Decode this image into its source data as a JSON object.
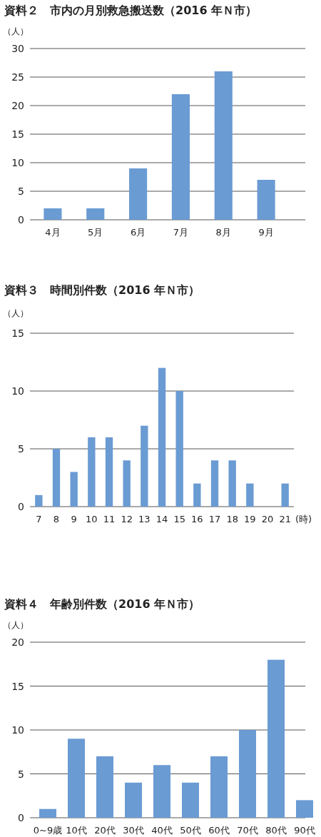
{
  "chart_data": [
    {
      "type": "bar",
      "title": "資料２　市内の月別救急搬送数（2016 年Ｎ市）",
      "ylabel": "（人）",
      "categories": [
        "4月",
        "5月",
        "6月",
        "7月",
        "8月",
        "9月"
      ],
      "series": [
        {
          "color": "#6a9bd3",
          "values": [
            2,
            2,
            9,
            22,
            26,
            7
          ]
        }
      ],
      "ylim": [
        0,
        30
      ],
      "yticks": [
        0,
        5,
        10,
        15,
        20,
        25,
        30
      ],
      "grid": "y"
    },
    {
      "type": "bar",
      "title": "資料３　時間別件数（2016 年Ｎ市）",
      "ylabel": "（人）",
      "xlabel": "(時)",
      "categories": [
        "7",
        "8",
        "9",
        "10",
        "11",
        "12",
        "13",
        "14",
        "15",
        "16",
        "17",
        "18",
        "19",
        "20",
        "21"
      ],
      "series": [
        {
          "color": "#6a9bd3",
          "values": [
            1,
            5,
            3,
            6,
            6,
            4,
            7,
            12,
            10,
            2,
            4,
            4,
            2,
            0,
            2
          ]
        }
      ],
      "ylim": [
        0,
        15
      ],
      "yticks": [
        0,
        5,
        10,
        15
      ],
      "grid": "y"
    },
    {
      "type": "bar",
      "title": "資料４　年齢別件数（2016 年Ｎ市）",
      "ylabel": "（人）",
      "categories": [
        "0~9歳",
        "10代",
        "20代",
        "30代",
        "40代",
        "50代",
        "60代",
        "70代",
        "80代",
        "90代"
      ],
      "series": [
        {
          "color": "#6a9bd3",
          "values": [
            1,
            9,
            7,
            4,
            6,
            4,
            7,
            10,
            18,
            2
          ]
        }
      ],
      "ylim": [
        0,
        20
      ],
      "yticks": [
        0,
        5,
        10,
        15,
        20
      ],
      "grid": "y"
    }
  ]
}
